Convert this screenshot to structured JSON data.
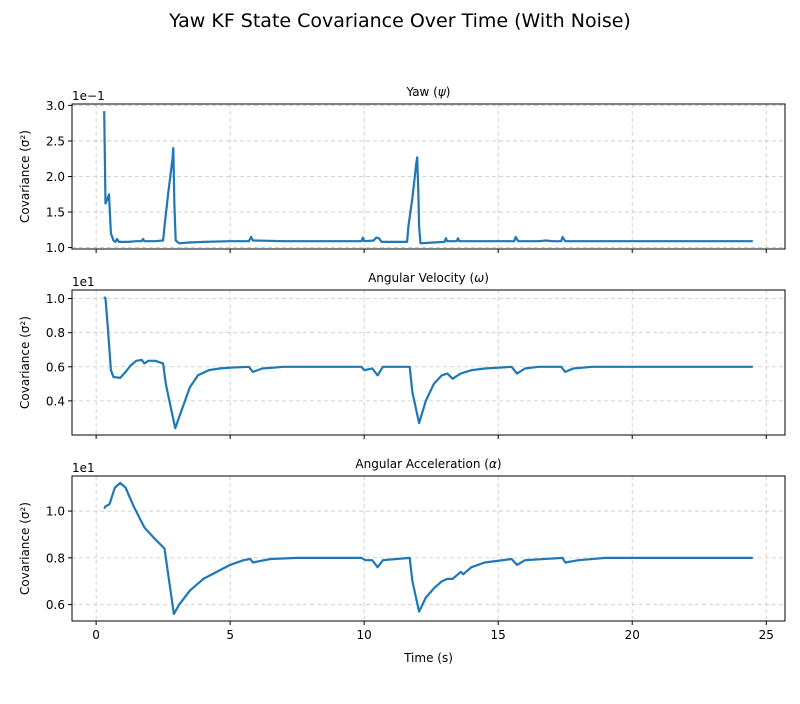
{
  "figure": {
    "title": "Yaw KF State Covariance Over Time  (With Noise)"
  },
  "chart_data": [
    {
      "type": "line",
      "title": "Yaw (ψ)",
      "title_main": "Yaw (",
      "title_sym": "ψ",
      "title_end": ")",
      "xlabel": "",
      "ylabel": "Covariance (σ²)",
      "offset_text": "1e−1",
      "offset_base": "1e",
      "offset_exp": "−1",
      "xlim": [
        -0.9,
        25.7
      ],
      "ylim": [
        0.98,
        3.02
      ],
      "xticks": [
        0,
        5,
        10,
        15,
        20,
        25
      ],
      "yticks": [
        1.0,
        1.5,
        2.0,
        2.5,
        3.0
      ],
      "ytick_labels": [
        "1.0",
        "1.5",
        "2.0",
        "2.5",
        "3.0"
      ],
      "grid": true,
      "line_color": "#1f77b4",
      "series": [
        {
          "values": [
            [
              0.3,
              2.92
            ],
            [
              0.35,
              1.62
            ],
            [
              0.42,
              1.68
            ],
            [
              0.48,
              1.75
            ],
            [
              0.55,
              1.2
            ],
            [
              0.65,
              1.1
            ],
            [
              0.72,
              1.08
            ],
            [
              0.78,
              1.12
            ],
            [
              0.85,
              1.08
            ],
            [
              1.2,
              1.08
            ],
            [
              1.5,
              1.09
            ],
            [
              1.7,
              1.09
            ],
            [
              1.75,
              1.12
            ],
            [
              1.8,
              1.09
            ],
            [
              2.2,
              1.09
            ],
            [
              2.5,
              1.1
            ],
            [
              2.55,
              1.3
            ],
            [
              2.7,
              1.8
            ],
            [
              2.85,
              2.25
            ],
            [
              2.88,
              2.4
            ],
            [
              2.92,
              1.6
            ],
            [
              2.97,
              1.1
            ],
            [
              3.1,
              1.06
            ],
            [
              3.4,
              1.07
            ],
            [
              4.0,
              1.08
            ],
            [
              5.0,
              1.09
            ],
            [
              5.7,
              1.09
            ],
            [
              5.78,
              1.15
            ],
            [
              5.85,
              1.1
            ],
            [
              7.0,
              1.09
            ],
            [
              9.0,
              1.09
            ],
            [
              9.9,
              1.09
            ],
            [
              9.95,
              1.14
            ],
            [
              10.0,
              1.09
            ],
            [
              10.35,
              1.1
            ],
            [
              10.45,
              1.14
            ],
            [
              10.55,
              1.13
            ],
            [
              10.65,
              1.08
            ],
            [
              11.0,
              1.08
            ],
            [
              11.6,
              1.08
            ],
            [
              11.65,
              1.3
            ],
            [
              11.8,
              1.7
            ],
            [
              11.95,
              2.2
            ],
            [
              11.98,
              2.27
            ],
            [
              12.02,
              1.8
            ],
            [
              12.05,
              1.3
            ],
            [
              12.1,
              1.06
            ],
            [
              12.5,
              1.07
            ],
            [
              13.0,
              1.08
            ],
            [
              13.05,
              1.13
            ],
            [
              13.1,
              1.09
            ],
            [
              13.45,
              1.09
            ],
            [
              13.5,
              1.13
            ],
            [
              13.55,
              1.09
            ],
            [
              15.6,
              1.09
            ],
            [
              15.65,
              1.15
            ],
            [
              15.75,
              1.09
            ],
            [
              16.5,
              1.09
            ],
            [
              16.8,
              1.1
            ],
            [
              17.0,
              1.09
            ],
            [
              17.35,
              1.09
            ],
            [
              17.4,
              1.15
            ],
            [
              17.5,
              1.09
            ],
            [
              20.0,
              1.09
            ],
            [
              22.0,
              1.09
            ],
            [
              24.5,
              1.09
            ]
          ]
        }
      ]
    },
    {
      "type": "line",
      "title": "Angular Velocity (ω)",
      "title_main": "Angular Velocity (",
      "title_sym": "ω",
      "title_end": ")",
      "xlabel": "",
      "ylabel": "Covariance (σ²)",
      "offset_text": "1e1",
      "offset_base": "1e",
      "offset_exp": "1",
      "xlim": [
        -0.9,
        25.7
      ],
      "ylim": [
        0.2,
        1.05
      ],
      "xticks": [
        0,
        5,
        10,
        15,
        20,
        25
      ],
      "yticks": [
        0.4,
        0.6,
        0.8,
        1.0
      ],
      "ytick_labels": [
        "0.4",
        "0.6",
        "0.8",
        "1.0"
      ],
      "grid": true,
      "line_color": "#1f77b4",
      "series": [
        {
          "values": [
            [
              0.3,
              1.01
            ],
            [
              0.35,
              1.0
            ],
            [
              0.45,
              0.8
            ],
            [
              0.55,
              0.58
            ],
            [
              0.65,
              0.54
            ],
            [
              0.9,
              0.535
            ],
            [
              1.1,
              0.57
            ],
            [
              1.3,
              0.61
            ],
            [
              1.5,
              0.635
            ],
            [
              1.7,
              0.64
            ],
            [
              1.8,
              0.62
            ],
            [
              1.95,
              0.635
            ],
            [
              2.2,
              0.635
            ],
            [
              2.5,
              0.62
            ],
            [
              2.6,
              0.5
            ],
            [
              2.8,
              0.35
            ],
            [
              2.95,
              0.24
            ],
            [
              3.2,
              0.35
            ],
            [
              3.5,
              0.48
            ],
            [
              3.8,
              0.55
            ],
            [
              4.2,
              0.58
            ],
            [
              4.6,
              0.59
            ],
            [
              5.0,
              0.595
            ],
            [
              5.7,
              0.6
            ],
            [
              5.85,
              0.57
            ],
            [
              6.2,
              0.59
            ],
            [
              7.0,
              0.6
            ],
            [
              8.0,
              0.6
            ],
            [
              9.9,
              0.6
            ],
            [
              10.0,
              0.58
            ],
            [
              10.3,
              0.59
            ],
            [
              10.5,
              0.55
            ],
            [
              10.7,
              0.6
            ],
            [
              11.0,
              0.6
            ],
            [
              11.7,
              0.6
            ],
            [
              11.8,
              0.45
            ],
            [
              12.05,
              0.27
            ],
            [
              12.3,
              0.4
            ],
            [
              12.6,
              0.5
            ],
            [
              12.9,
              0.55
            ],
            [
              13.1,
              0.56
            ],
            [
              13.3,
              0.53
            ],
            [
              13.6,
              0.56
            ],
            [
              14.0,
              0.58
            ],
            [
              14.5,
              0.59
            ],
            [
              15.5,
              0.6
            ],
            [
              15.7,
              0.56
            ],
            [
              16.0,
              0.59
            ],
            [
              16.5,
              0.6
            ],
            [
              17.35,
              0.6
            ],
            [
              17.5,
              0.57
            ],
            [
              17.8,
              0.59
            ],
            [
              18.5,
              0.6
            ],
            [
              20.0,
              0.6
            ],
            [
              22.0,
              0.6
            ],
            [
              24.5,
              0.6
            ]
          ]
        }
      ]
    },
    {
      "type": "line",
      "title": "Angular Acceleration (α)",
      "title_main": "Angular Acceleration (",
      "title_sym": "α",
      "title_end": ")",
      "xlabel": "Time (s)",
      "ylabel": "Covariance (σ²)",
      "offset_text": "1e1",
      "offset_base": "1e",
      "offset_exp": "1",
      "xlim": [
        -0.9,
        25.7
      ],
      "ylim": [
        0.53,
        1.15
      ],
      "xticks": [
        0,
        5,
        10,
        15,
        20,
        25
      ],
      "xtick_labels": [
        "0",
        "5",
        "10",
        "15",
        "20",
        "25"
      ],
      "yticks": [
        0.6,
        0.8,
        1.0
      ],
      "ytick_labels": [
        "0.6",
        "0.8",
        "1.0"
      ],
      "grid": true,
      "line_color": "#1f77b4",
      "series": [
        {
          "values": [
            [
              0.3,
              1.01
            ],
            [
              0.35,
              1.02
            ],
            [
              0.5,
              1.03
            ],
            [
              0.7,
              1.1
            ],
            [
              0.9,
              1.12
            ],
            [
              1.1,
              1.1
            ],
            [
              1.4,
              1.02
            ],
            [
              1.8,
              0.93
            ],
            [
              2.2,
              0.88
            ],
            [
              2.55,
              0.84
            ],
            [
              2.7,
              0.72
            ],
            [
              2.9,
              0.56
            ],
            [
              3.1,
              0.6
            ],
            [
              3.5,
              0.66
            ],
            [
              4.0,
              0.71
            ],
            [
              4.5,
              0.74
            ],
            [
              5.0,
              0.77
            ],
            [
              5.5,
              0.79
            ],
            [
              5.75,
              0.795
            ],
            [
              5.85,
              0.78
            ],
            [
              6.5,
              0.795
            ],
            [
              7.5,
              0.8
            ],
            [
              9.9,
              0.8
            ],
            [
              10.05,
              0.79
            ],
            [
              10.3,
              0.79
            ],
            [
              10.5,
              0.76
            ],
            [
              10.7,
              0.79
            ],
            [
              11.2,
              0.795
            ],
            [
              11.7,
              0.8
            ],
            [
              11.8,
              0.7
            ],
            [
              12.05,
              0.57
            ],
            [
              12.3,
              0.63
            ],
            [
              12.6,
              0.67
            ],
            [
              12.9,
              0.7
            ],
            [
              13.1,
              0.71
            ],
            [
              13.3,
              0.71
            ],
            [
              13.6,
              0.74
            ],
            [
              13.7,
              0.73
            ],
            [
              14.0,
              0.76
            ],
            [
              14.5,
              0.78
            ],
            [
              15.5,
              0.795
            ],
            [
              15.7,
              0.77
            ],
            [
              16.0,
              0.79
            ],
            [
              17.4,
              0.8
            ],
            [
              17.5,
              0.78
            ],
            [
              18.0,
              0.79
            ],
            [
              19.0,
              0.8
            ],
            [
              22.0,
              0.8
            ],
            [
              24.5,
              0.8
            ]
          ]
        }
      ]
    }
  ]
}
